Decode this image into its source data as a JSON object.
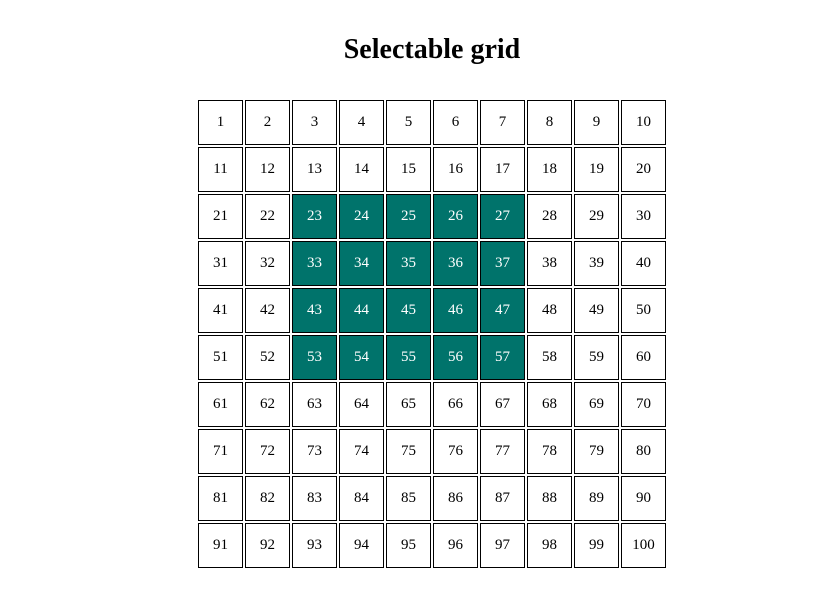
{
  "page": {
    "title": "Selectable grid"
  },
  "grid": {
    "selected_color": "#00736b",
    "cells": [
      {
        "label": "1",
        "selected": false
      },
      {
        "label": "2",
        "selected": false
      },
      {
        "label": "3",
        "selected": false
      },
      {
        "label": "4",
        "selected": false
      },
      {
        "label": "5",
        "selected": false
      },
      {
        "label": "6",
        "selected": false
      },
      {
        "label": "7",
        "selected": false
      },
      {
        "label": "8",
        "selected": false
      },
      {
        "label": "9",
        "selected": false
      },
      {
        "label": "10",
        "selected": false
      },
      {
        "label": "11",
        "selected": false
      },
      {
        "label": "12",
        "selected": false
      },
      {
        "label": "13",
        "selected": false
      },
      {
        "label": "14",
        "selected": false
      },
      {
        "label": "15",
        "selected": false
      },
      {
        "label": "16",
        "selected": false
      },
      {
        "label": "17",
        "selected": false
      },
      {
        "label": "18",
        "selected": false
      },
      {
        "label": "19",
        "selected": false
      },
      {
        "label": "20",
        "selected": false
      },
      {
        "label": "21",
        "selected": false
      },
      {
        "label": "22",
        "selected": false
      },
      {
        "label": "23",
        "selected": true
      },
      {
        "label": "24",
        "selected": true
      },
      {
        "label": "25",
        "selected": true
      },
      {
        "label": "26",
        "selected": true
      },
      {
        "label": "27",
        "selected": true
      },
      {
        "label": "28",
        "selected": false
      },
      {
        "label": "29",
        "selected": false
      },
      {
        "label": "30",
        "selected": false
      },
      {
        "label": "31",
        "selected": false
      },
      {
        "label": "32",
        "selected": false
      },
      {
        "label": "33",
        "selected": true
      },
      {
        "label": "34",
        "selected": true
      },
      {
        "label": "35",
        "selected": true
      },
      {
        "label": "36",
        "selected": true
      },
      {
        "label": "37",
        "selected": true
      },
      {
        "label": "38",
        "selected": false
      },
      {
        "label": "39",
        "selected": false
      },
      {
        "label": "40",
        "selected": false
      },
      {
        "label": "41",
        "selected": false
      },
      {
        "label": "42",
        "selected": false
      },
      {
        "label": "43",
        "selected": true
      },
      {
        "label": "44",
        "selected": true
      },
      {
        "label": "45",
        "selected": true
      },
      {
        "label": "46",
        "selected": true
      },
      {
        "label": "47",
        "selected": true
      },
      {
        "label": "48",
        "selected": false
      },
      {
        "label": "49",
        "selected": false
      },
      {
        "label": "50",
        "selected": false
      },
      {
        "label": "51",
        "selected": false
      },
      {
        "label": "52",
        "selected": false
      },
      {
        "label": "53",
        "selected": true
      },
      {
        "label": "54",
        "selected": true
      },
      {
        "label": "55",
        "selected": true
      },
      {
        "label": "56",
        "selected": true
      },
      {
        "label": "57",
        "selected": true
      },
      {
        "label": "58",
        "selected": false
      },
      {
        "label": "59",
        "selected": false
      },
      {
        "label": "60",
        "selected": false
      },
      {
        "label": "61",
        "selected": false
      },
      {
        "label": "62",
        "selected": false
      },
      {
        "label": "63",
        "selected": false
      },
      {
        "label": "64",
        "selected": false
      },
      {
        "label": "65",
        "selected": false
      },
      {
        "label": "66",
        "selected": false
      },
      {
        "label": "67",
        "selected": false
      },
      {
        "label": "68",
        "selected": false
      },
      {
        "label": "69",
        "selected": false
      },
      {
        "label": "70",
        "selected": false
      },
      {
        "label": "71",
        "selected": false
      },
      {
        "label": "72",
        "selected": false
      },
      {
        "label": "73",
        "selected": false
      },
      {
        "label": "74",
        "selected": false
      },
      {
        "label": "75",
        "selected": false
      },
      {
        "label": "76",
        "selected": false
      },
      {
        "label": "77",
        "selected": false
      },
      {
        "label": "78",
        "selected": false
      },
      {
        "label": "79",
        "selected": false
      },
      {
        "label": "80",
        "selected": false
      },
      {
        "label": "81",
        "selected": false
      },
      {
        "label": "82",
        "selected": false
      },
      {
        "label": "83",
        "selected": false
      },
      {
        "label": "84",
        "selected": false
      },
      {
        "label": "85",
        "selected": false
      },
      {
        "label": "86",
        "selected": false
      },
      {
        "label": "87",
        "selected": false
      },
      {
        "label": "88",
        "selected": false
      },
      {
        "label": "89",
        "selected": false
      },
      {
        "label": "90",
        "selected": false
      },
      {
        "label": "91",
        "selected": false
      },
      {
        "label": "92",
        "selected": false
      },
      {
        "label": "93",
        "selected": false
      },
      {
        "label": "94",
        "selected": false
      },
      {
        "label": "95",
        "selected": false
      },
      {
        "label": "96",
        "selected": false
      },
      {
        "label": "97",
        "selected": false
      },
      {
        "label": "98",
        "selected": false
      },
      {
        "label": "99",
        "selected": false
      },
      {
        "label": "100",
        "selected": false
      }
    ]
  }
}
